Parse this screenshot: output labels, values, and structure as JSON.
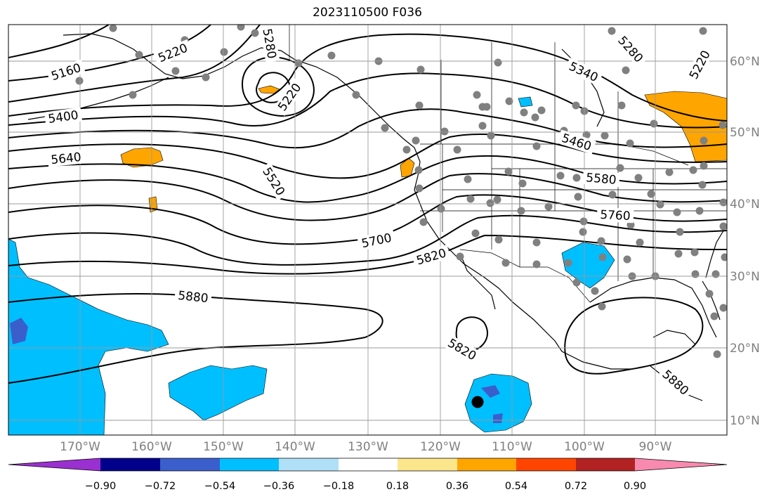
{
  "title": "2023110500 F036",
  "map": {
    "lon_range": [
      -180,
      -80
    ],
    "lat_range": [
      8,
      65
    ],
    "lon_ticks": [
      "170°W",
      "160°W",
      "150°W",
      "140°W",
      "130°W",
      "120°W",
      "110°W",
      "100°W",
      "90°W"
    ],
    "lat_ticks": [
      "10°N",
      "20°N",
      "30°N",
      "40°N",
      "50°N",
      "60°N"
    ],
    "grid": true,
    "contour_labels": [
      {
        "text": "5160"
      },
      {
        "text": "5220"
      },
      {
        "text": "5280"
      },
      {
        "text": "5220"
      },
      {
        "text": "5280"
      },
      {
        "text": "5340"
      },
      {
        "text": "5220"
      },
      {
        "text": "5400"
      },
      {
        "text": "5460"
      },
      {
        "text": "5520"
      },
      {
        "text": "5580"
      },
      {
        "text": "5640"
      },
      {
        "text": "5700"
      },
      {
        "text": "5760"
      },
      {
        "text": "5820"
      },
      {
        "text": "5880"
      },
      {
        "text": "5820"
      },
      {
        "text": "5880"
      }
    ]
  },
  "colorbar": {
    "colors": [
      "#9b30d0",
      "#00008b",
      "#3a5fcd",
      "#00bfff",
      "#b0e0f8",
      "#ffffff",
      "#fce68c",
      "#ffa500",
      "#ff4500",
      "#b22222",
      "#f88aaf"
    ],
    "tick_labels": [
      "−0.90",
      "−0.72",
      "−0.54",
      "−0.36",
      "−0.18",
      "0.18",
      "0.36",
      "0.54",
      "0.72",
      "0.90"
    ]
  },
  "colors": {
    "positive": "#ffa500",
    "negative": "#00bfff",
    "deep_negative": "#3a5fcd",
    "station": "#808080"
  }
}
